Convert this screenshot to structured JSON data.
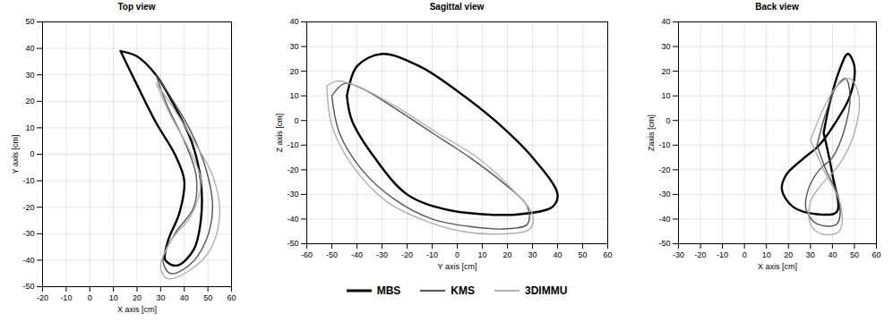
{
  "chart_data": [
    {
      "type": "line",
      "title": "Top view",
      "x_label": "X axis [cm]",
      "y_label": "Y axis [cm]",
      "xlim": [
        -20,
        60
      ],
      "xticks": [
        -20,
        -10,
        0,
        10,
        20,
        30,
        40,
        50,
        60
      ],
      "ylim": [
        -50,
        50
      ],
      "yticks": [
        -50,
        -40,
        -30,
        -20,
        -10,
        0,
        10,
        20,
        30,
        40,
        50
      ],
      "grid": true,
      "series": [
        {
          "name": "MBS",
          "color": "#000000",
          "x": [
            13,
            20,
            28,
            36,
            43,
            47,
            47,
            44,
            37,
            32,
            33,
            38,
            40,
            36,
            28,
            19,
            13
          ],
          "values": [
            39,
            37,
            30,
            18,
            5,
            -10,
            -25,
            -36,
            -42,
            -40,
            -33,
            -22,
            -10,
            0,
            12,
            28,
            39
          ]
        },
        {
          "name": "KMS",
          "color": "#555555",
          "x": [
            28,
            34,
            42,
            49,
            52,
            49,
            42,
            34,
            31,
            36,
            44,
            45,
            40,
            33,
            28
          ],
          "values": [
            30,
            22,
            10,
            -5,
            -20,
            -33,
            -42,
            -45,
            -40,
            -30,
            -20,
            -8,
            5,
            18,
            30
          ]
        },
        {
          "name": "3DIMMU",
          "color": "#b0b0b0",
          "x": [
            28,
            35,
            44,
            52,
            55,
            51,
            42,
            33,
            30,
            34,
            43,
            47,
            42,
            34,
            28
          ],
          "values": [
            27,
            18,
            5,
            -8,
            -22,
            -36,
            -44,
            -47,
            -43,
            -33,
            -23,
            -10,
            2,
            15,
            27
          ]
        }
      ]
    },
    {
      "type": "line",
      "title": "Sagittal view",
      "x_label": "Y axis [cm]",
      "y_label": "Z axis [cm]",
      "xlim": [
        -60,
        60
      ],
      "xticks": [
        -60,
        -50,
        -40,
        -30,
        -20,
        -10,
        0,
        10,
        20,
        30,
        40,
        50,
        60
      ],
      "ylim": [
        -50,
        40
      ],
      "yticks": [
        -50,
        -40,
        -30,
        -20,
        -10,
        0,
        10,
        20,
        30,
        40
      ],
      "grid": true,
      "legend": "bottom",
      "series": [
        {
          "name": "MBS",
          "color": "#000000",
          "x": [
            -44,
            -40,
            -30,
            -15,
            0,
            15,
            30,
            40,
            38,
            25,
            10,
            -5,
            -20,
            -33,
            -42,
            -44
          ],
          "values": [
            10,
            22,
            27,
            22,
            12,
            0,
            -15,
            -30,
            -35,
            -38,
            -38,
            -36,
            -30,
            -15,
            0,
            10
          ]
        },
        {
          "name": "KMS",
          "color": "#555555",
          "x": [
            -50,
            -45,
            -38,
            -25,
            -10,
            5,
            18,
            28,
            28,
            18,
            5,
            -10,
            -25,
            -38,
            -47,
            -50
          ],
          "values": [
            10,
            15,
            13,
            5,
            -5,
            -15,
            -25,
            -35,
            -42,
            -44,
            -43,
            -40,
            -32,
            -20,
            -5,
            10
          ]
        },
        {
          "name": "3DIMMU",
          "color": "#b0b0b0",
          "x": [
            -52,
            -48,
            -40,
            -25,
            -8,
            8,
            22,
            30,
            29,
            18,
            2,
            -12,
            -28,
            -42,
            -50,
            -52
          ],
          "values": [
            14,
            16,
            14,
            6,
            -5,
            -15,
            -28,
            -38,
            -44,
            -46,
            -45,
            -41,
            -33,
            -18,
            -2,
            14
          ]
        }
      ]
    },
    {
      "type": "line",
      "title": "Back view",
      "x_label": "X axis [cm]",
      "y_label": "Zaxis [cm]",
      "xlim": [
        -30,
        60
      ],
      "xticks": [
        -30,
        -20,
        -10,
        0,
        10,
        20,
        30,
        40,
        50,
        60
      ],
      "ylim": [
        -50,
        40
      ],
      "yticks": [
        -50,
        -40,
        -30,
        -20,
        -10,
        0,
        10,
        20,
        30,
        40
      ],
      "grid": true,
      "series": [
        {
          "name": "MBS",
          "color": "#000000",
          "x": [
            36,
            39,
            43,
            47,
            50,
            48,
            42,
            34,
            26,
            19,
            17,
            22,
            33,
            42,
            40,
            36
          ],
          "values": [
            -5,
            8,
            20,
            27,
            22,
            10,
            0,
            -10,
            -16,
            -22,
            -28,
            -35,
            -38,
            -37,
            -22,
            -5
          ]
        },
        {
          "name": "KMS",
          "color": "#555555",
          "x": [
            33,
            37,
            42,
            46,
            48,
            45,
            40,
            34,
            29,
            28,
            33,
            42,
            43,
            37,
            33
          ],
          "values": [
            -10,
            3,
            14,
            17,
            10,
            -5,
            -15,
            -20,
            -28,
            -36,
            -42,
            -42,
            -32,
            -20,
            -10
          ]
        },
        {
          "name": "3DIMMU",
          "color": "#b0b0b0",
          "x": [
            30,
            36,
            42,
            48,
            52,
            50,
            43,
            35,
            30,
            30,
            35,
            43,
            44,
            36,
            30
          ],
          "values": [
            -8,
            5,
            14,
            17,
            10,
            -5,
            -18,
            -26,
            -33,
            -42,
            -46,
            -45,
            -35,
            -20,
            -8
          ]
        }
      ]
    }
  ]
}
